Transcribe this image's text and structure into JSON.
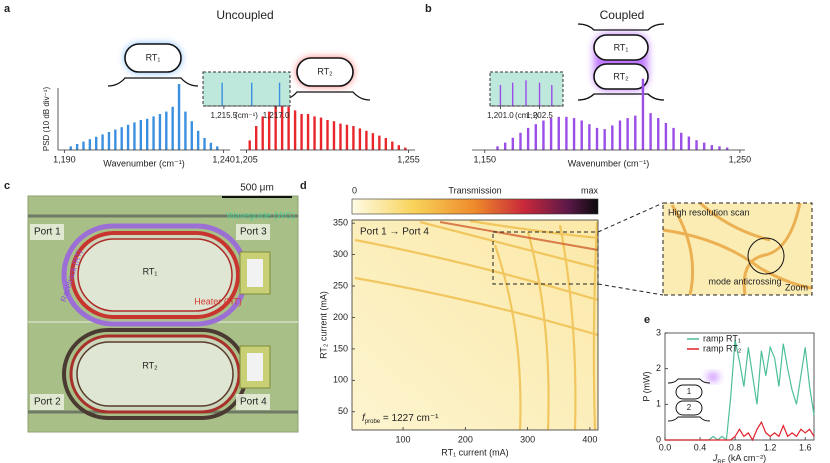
{
  "panel_labels": [
    "a",
    "b",
    "c",
    "d",
    "e"
  ],
  "panel_a": {
    "title": "Uncoupled",
    "ring_labels": [
      "RT₁",
      "RT₂"
    ],
    "ylabel": "PSD (10 dB div⁻¹)"
  },
  "panel_b": {
    "title": "Coupled",
    "ring_labels": [
      "RT₁",
      "RT₂"
    ]
  },
  "panel_c": {
    "scale_bar": "500 μm",
    "ports": [
      "Port 1",
      "Port 3",
      "Port 2",
      "Port 4"
    ],
    "ring_labels": [
      "RT₁",
      "RT₂"
    ],
    "waveguide": "Waveguide (WG)",
    "racetrack": "Racetrack (RT)",
    "heater": "Heater (HT)"
  },
  "panel_d_zoom": {
    "title": "High resolution scan",
    "annotation": "mode anticrossing",
    "corner": "Zoom"
  },
  "panel_e_icon": {
    "ring_labels": [
      "1",
      "2"
    ]
  },
  "chart_data": [
    {
      "type": "stem",
      "color": "#3b8fe0",
      "xlabel": "Wavenumber (cm⁻¹)",
      "x": [
        1192,
        1194,
        1196,
        1198,
        1200,
        1202,
        1204,
        1206,
        1208,
        1210,
        1212,
        1214,
        1216,
        1218,
        1220,
        1222,
        1224,
        1226,
        1228,
        1230,
        1232,
        1234,
        1236,
        1238
      ],
      "values": [
        3,
        5,
        7,
        9,
        11,
        13,
        15,
        17,
        19,
        21,
        23,
        25,
        26,
        28,
        30,
        32,
        36,
        55,
        32,
        24,
        16,
        10,
        6,
        3
      ],
      "xlim": [
        1188,
        1242
      ],
      "ylim": [
        0,
        60
      ],
      "xticks": [
        {
          "value": 1190,
          "label": "1,190"
        },
        {
          "value": 1240,
          "label": "1,240"
        }
      ]
    },
    {
      "type": "stem",
      "color": "#e8262b",
      "x": [
        1206,
        1208,
        1210,
        1212,
        1214,
        1216,
        1218,
        1220,
        1222,
        1224,
        1226,
        1228,
        1230,
        1232,
        1234,
        1236,
        1238,
        1240,
        1242,
        1244,
        1246,
        1248,
        1250,
        1252,
        1254
      ],
      "values": [
        8,
        20,
        28,
        32,
        38,
        55,
        36,
        33,
        30,
        30,
        28,
        27,
        25,
        24,
        22,
        21,
        20,
        18,
        16,
        14,
        12,
        10,
        7,
        4,
        2
      ],
      "xlim": [
        1203,
        1257
      ],
      "ylim": [
        0,
        60
      ],
      "xticks": [
        {
          "value": 1205,
          "label": "1,205"
        },
        {
          "value": 1255,
          "label": "1,255"
        }
      ]
    },
    {
      "type": "stem",
      "color": "#9b4de8",
      "xlabel": "Wavenumber (cm⁻¹)",
      "x": [
        1155,
        1158,
        1161,
        1164,
        1167,
        1170,
        1173,
        1176,
        1179,
        1182,
        1185,
        1188,
        1191,
        1194,
        1197,
        1200,
        1203,
        1206,
        1209,
        1212,
        1215,
        1218,
        1221,
        1224,
        1227,
        1230,
        1233,
        1236,
        1239,
        1242,
        1245
      ],
      "values": [
        3,
        6,
        10,
        14,
        18,
        21,
        24,
        26,
        27,
        27,
        26,
        24,
        21,
        18,
        17,
        20,
        24,
        26,
        28,
        58,
        30,
        26,
        22,
        18,
        14,
        11,
        8,
        6,
        4,
        3,
        2
      ],
      "xlim": [
        1145,
        1252
      ],
      "ylim": [
        0,
        70
      ],
      "xticks": [
        {
          "value": 1150,
          "label": "1,150"
        },
        {
          "value": 1250,
          "label": "1,250"
        }
      ]
    },
    {
      "type": "stem",
      "color": "#3b8fe0",
      "xlabel": "(cm⁻¹)",
      "x": [
        1215.45,
        1216.3,
        1217.1
      ],
      "values": [
        50,
        50,
        50
      ],
      "xlim": [
        1214.9,
        1217.4
      ],
      "ylim": [
        0,
        60
      ],
      "xticks": [
        {
          "value": 1215.5,
          "label": "1,215.5"
        },
        {
          "value": 1217.0,
          "label": "1,217.0"
        }
      ]
    },
    {
      "type": "stem",
      "color": "#9b4de8",
      "xlabel": "(cm⁻¹)",
      "x": [
        1201.0,
        1201.47,
        1201.98,
        1202.5,
        1202.97
      ],
      "values": [
        45,
        50,
        55,
        50,
        45
      ],
      "xlim": [
        1200.6,
        1203.4
      ],
      "ylim": [
        0,
        60
      ],
      "xticks": [
        {
          "value": 1201.0,
          "label": "1,201.0"
        },
        {
          "value": 1202.5,
          "label": "1,202.5"
        }
      ]
    },
    {
      "type": "heatmap",
      "xlabel": "RT₁ current (mA)",
      "ylabel": "RT₂ current (mA)",
      "xlim": [
        18,
        413
      ],
      "ylim": [
        21,
        355
      ],
      "xticks": [
        100,
        200,
        300,
        400
      ],
      "yticks": [
        50,
        100,
        150,
        200,
        250,
        300,
        350
      ],
      "colorbar_min": 0,
      "colorbar_label": "Transmission",
      "colorbar_max_label": "max",
      "annotation": "Port 1 → Port 4",
      "probe": {
        "symbol": "f",
        "subscript": "probe",
        "rest": " = 1227 cm⁻¹"
      }
    },
    {
      "type": "line",
      "ylabel": "P (mW)",
      "xlabel": {
        "symbol": "J",
        "subscript": "RF",
        "rest": " (kA cm⁻²)"
      },
      "x": [
        0,
        0.5,
        0.55,
        0.6,
        0.65,
        0.7,
        0.75,
        0.8,
        0.85,
        0.9,
        0.95,
        1.0,
        1.05,
        1.1,
        1.15,
        1.2,
        1.25,
        1.3,
        1.35,
        1.4,
        1.45,
        1.5,
        1.55,
        1.6,
        1.65,
        1.7
      ],
      "series": [
        {
          "name": "ramp RT₁",
          "color": "#4dbf98",
          "values": [
            0,
            0,
            0.1,
            0,
            0.1,
            0,
            1.2,
            2.8,
            2.2,
            1.5,
            2.6,
            1.8,
            1.0,
            2.5,
            1.8,
            2.6,
            2.3,
            1.5,
            2.7,
            2.0,
            1.4,
            1.0,
            1.8,
            2.6,
            1.5,
            0.7
          ]
        },
        {
          "name": "ramp RT₂",
          "color": "#e0202a",
          "values": [
            0,
            0,
            0,
            0,
            0,
            0,
            0,
            0.1,
            0.3,
            0.1,
            0.2,
            0,
            0.3,
            0.5,
            0.2,
            0.1,
            0.2,
            0.1,
            0.4,
            0.1,
            0.2,
            0.1,
            0.3,
            0.2,
            0.3,
            0.1
          ]
        }
      ],
      "xlim": [
        0,
        1.7
      ],
      "ylim": [
        0,
        3
      ],
      "xticks": [
        {
          "value": 0,
          "label": "0.0"
        },
        0.4,
        0.8,
        1.2,
        1.6
      ],
      "yticks": [
        0,
        1,
        2,
        3
      ],
      "legend": "upper-left"
    }
  ]
}
